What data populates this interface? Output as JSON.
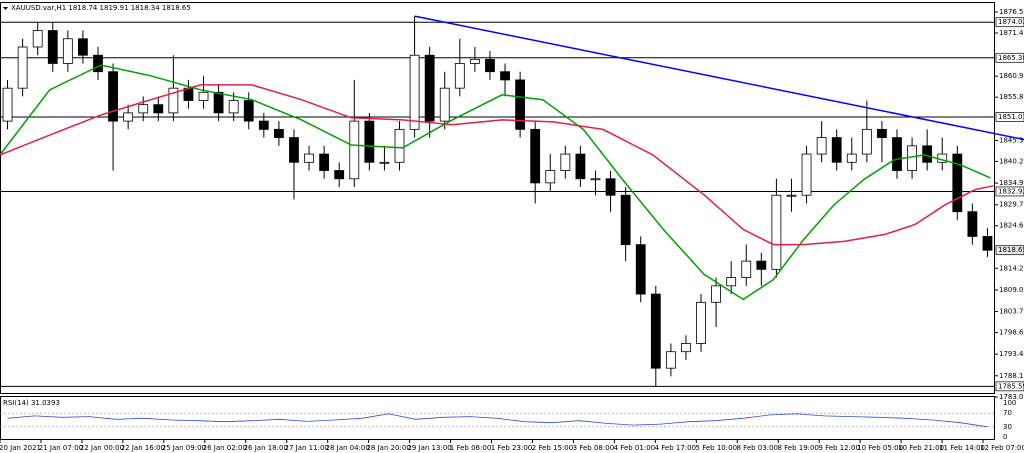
{
  "chart_data": {
    "type": "candlestick",
    "title": "XAUUSD.var,H1  1818.74 1819.91 1818.34 1818.65",
    "xlim": [
      0,
      66
    ],
    "ylim": [
      1783,
      1876.5
    ],
    "yticks": [
      {
        "value": 1876.5,
        "label": "1876.50"
      },
      {
        "value": 1871.4,
        "label": "1871.40"
      },
      {
        "value": 1860.9,
        "label": "1860.90"
      },
      {
        "value": 1855.8,
        "label": "1855.80"
      },
      {
        "value": 1845.3,
        "label": "1845.30"
      },
      {
        "value": 1840.2,
        "label": "1840.20"
      },
      1834.95,
      {
        "value": 1829.7,
        "label": "1829.70"
      },
      {
        "value": 1824.6,
        "label": "1824.60"
      },
      1814.25,
      {
        "value": 1809,
        "label": "1809.00"
      },
      1803.75,
      1798.65,
      {
        "value": 1793.4,
        "label": "1793.40"
      },
      1788.15,
      {
        "value": 1783,
        "label": "1783.00"
      }
    ],
    "xtick_labels": [
      "20 Jan 2021",
      "21 Jan 07:00",
      "22 Jan 00:00",
      "22 Jan 16:00",
      "25 Jan 09:00",
      "26 Jan 02:00",
      "26 Jan 18:00",
      "27 Jan 11:00",
      "28 Jan 04:00",
      "28 Jan 20:00",
      "29 Jan 13:00",
      "1 Feb 06:00",
      "1 Feb 23:00",
      "2 Feb 15:00",
      "3 Feb 08:00",
      "4 Feb 01:00",
      "4 Feb 17:00",
      "5 Feb 10:00",
      "8 Feb 03:00",
      "8 Feb 19:00",
      "9 Feb 12:00",
      "10 Feb 05:00",
      "10 Feb 21:00",
      "11 Feb 14:00",
      "12 Feb 07:00"
    ],
    "color_up": "#ffffff",
    "color_down": "#000000",
    "open": [
      1850,
      1858,
      1868,
      1872,
      1864,
      1870,
      1866,
      1862,
      1850,
      1852,
      1854,
      1852,
      1858,
      1855,
      1857,
      1852,
      1855,
      1850,
      1848,
      1846,
      1840,
      1842,
      1838,
      1836,
      1850,
      1840,
      1840,
      1848,
      1866,
      1850,
      1858,
      1864,
      1865,
      1862,
      1860,
      1848,
      1835,
      1838,
      1842,
      1836,
      1836,
      1832,
      1820,
      1808,
      1790,
      1794,
      1796,
      1806,
      1810,
      1812,
      1816,
      1814,
      1832,
      1832,
      1842,
      1846,
      1840,
      1842,
      1848,
      1846,
      1838,
      1844,
      1840,
      1842,
      1828,
      1822
    ],
    "high": [
      1860,
      1870,
      1874,
      1874,
      1872,
      1872,
      1868,
      1864,
      1854,
      1856,
      1856,
      1866,
      1860,
      1861,
      1859,
      1857,
      1857,
      1852,
      1850,
      1848,
      1844,
      1844,
      1840,
      1860,
      1852,
      1844,
      1850,
      1875.5,
      1868,
      1862,
      1870,
      1868,
      1867,
      1864,
      1862,
      1850,
      1842,
      1844,
      1844,
      1838,
      1838,
      1834,
      1822,
      1810,
      1796,
      1798,
      1808,
      1812,
      1816,
      1820,
      1818,
      1836,
      1836,
      1844,
      1850,
      1848,
      1846,
      1855,
      1850,
      1848,
      1846,
      1848,
      1846,
      1844,
      1830,
      1824
    ],
    "low": [
      1848,
      1856,
      1866,
      1862,
      1862,
      1864,
      1860,
      1838,
      1848,
      1850,
      1850,
      1850,
      1853,
      1853,
      1850,
      1850,
      1848,
      1846,
      1844,
      1831,
      1838,
      1836,
      1834,
      1834,
      1838,
      1838,
      1838,
      1846,
      1846,
      1848,
      1856,
      1862,
      1860,
      1856,
      1846,
      1830,
      1833,
      1836,
      1834,
      1832,
      1828,
      1816,
      1806,
      1785.59,
      1788,
      1792,
      1794,
      1800,
      1808,
      1810,
      1810,
      1812,
      1828,
      1830,
      1840,
      1838,
      1838,
      1840,
      1840,
      1836,
      1836,
      1838,
      1838,
      1826,
      1820,
      1817
    ],
    "close": [
      1858,
      1868,
      1872,
      1864,
      1870,
      1866,
      1862,
      1850,
      1852,
      1854,
      1852,
      1858,
      1855,
      1857,
      1852,
      1855,
      1850,
      1848,
      1846,
      1840,
      1842,
      1838,
      1836,
      1850,
      1840,
      1840,
      1848,
      1866,
      1850,
      1858,
      1864,
      1865,
      1862,
      1860,
      1848,
      1835,
      1838,
      1842,
      1836,
      1836,
      1832,
      1820,
      1808,
      1790,
      1794,
      1796,
      1806,
      1810,
      1812,
      1816,
      1814,
      1832,
      1832,
      1842,
      1846,
      1840,
      1842,
      1848,
      1846,
      1838,
      1844,
      1840,
      1842,
      1828,
      1822,
      1818.65
    ],
    "moving_averages": [
      {
        "color": "#00a000",
        "x": [
          0,
          3.3,
          6.7,
          10,
          13.3,
          16.7,
          20,
          23.3,
          26.7,
          30,
          33.3,
          36,
          38.7,
          41.3,
          44,
          46.7,
          49.3,
          51.3,
          53.3,
          55.3,
          57.3,
          59.3,
          61.3,
          63.7,
          65.7
        ],
        "values": [
          1841.8,
          1857.6,
          1863.6,
          1861,
          1857.6,
          1855.2,
          1850.3,
          1844.2,
          1843.5,
          1850.3,
          1856.4,
          1855.2,
          1848,
          1835.8,
          1823.7,
          1812.8,
          1806.7,
          1811.5,
          1821.2,
          1829.6,
          1835.8,
          1840.6,
          1841.8,
          1839.4,
          1836.2
        ]
      },
      {
        "color": "#e0204a",
        "x": [
          0,
          3.3,
          6.7,
          10,
          13.3,
          16.7,
          20,
          23.3,
          26.7,
          30,
          33.3,
          36.7,
          40,
          43.3,
          46.7,
          49.3,
          51.3,
          53.3,
          56,
          58.7,
          60.7,
          62.7,
          64.7,
          65.9
        ],
        "values": [
          1841.8,
          1846.6,
          1851.5,
          1855.2,
          1858.8,
          1858.8,
          1855.2,
          1850.8,
          1850.3,
          1849.1,
          1850.3,
          1849.8,
          1848,
          1841.8,
          1832.1,
          1823.7,
          1820,
          1820,
          1820.8,
          1822.5,
          1824.9,
          1829.7,
          1833.4,
          1834.3
        ]
      }
    ],
    "trendline": {
      "color": "#0000ff",
      "x": [
        27.5,
        68.1
      ],
      "values": [
        1875.5,
        1845.4
      ]
    },
    "levels": [
      1874.02,
      1865.38,
      1851.01,
      1832.92,
      1785.59
    ],
    "current_price": 1818.65,
    "rsi": {
      "label": "RSI(14) 31.0393",
      "color": "#3050d0",
      "ylim": [
        0,
        100
      ],
      "yticks": [
        100,
        70,
        30,
        0
      ],
      "values": [
        55,
        62,
        58,
        60,
        52,
        55,
        50,
        48,
        45,
        48,
        52,
        46,
        50,
        55,
        68,
        52,
        58,
        60,
        55,
        45,
        42,
        48,
        40,
        35,
        38,
        45,
        48,
        55,
        65,
        68,
        62,
        60,
        58,
        55,
        50,
        42,
        30
      ]
    }
  }
}
